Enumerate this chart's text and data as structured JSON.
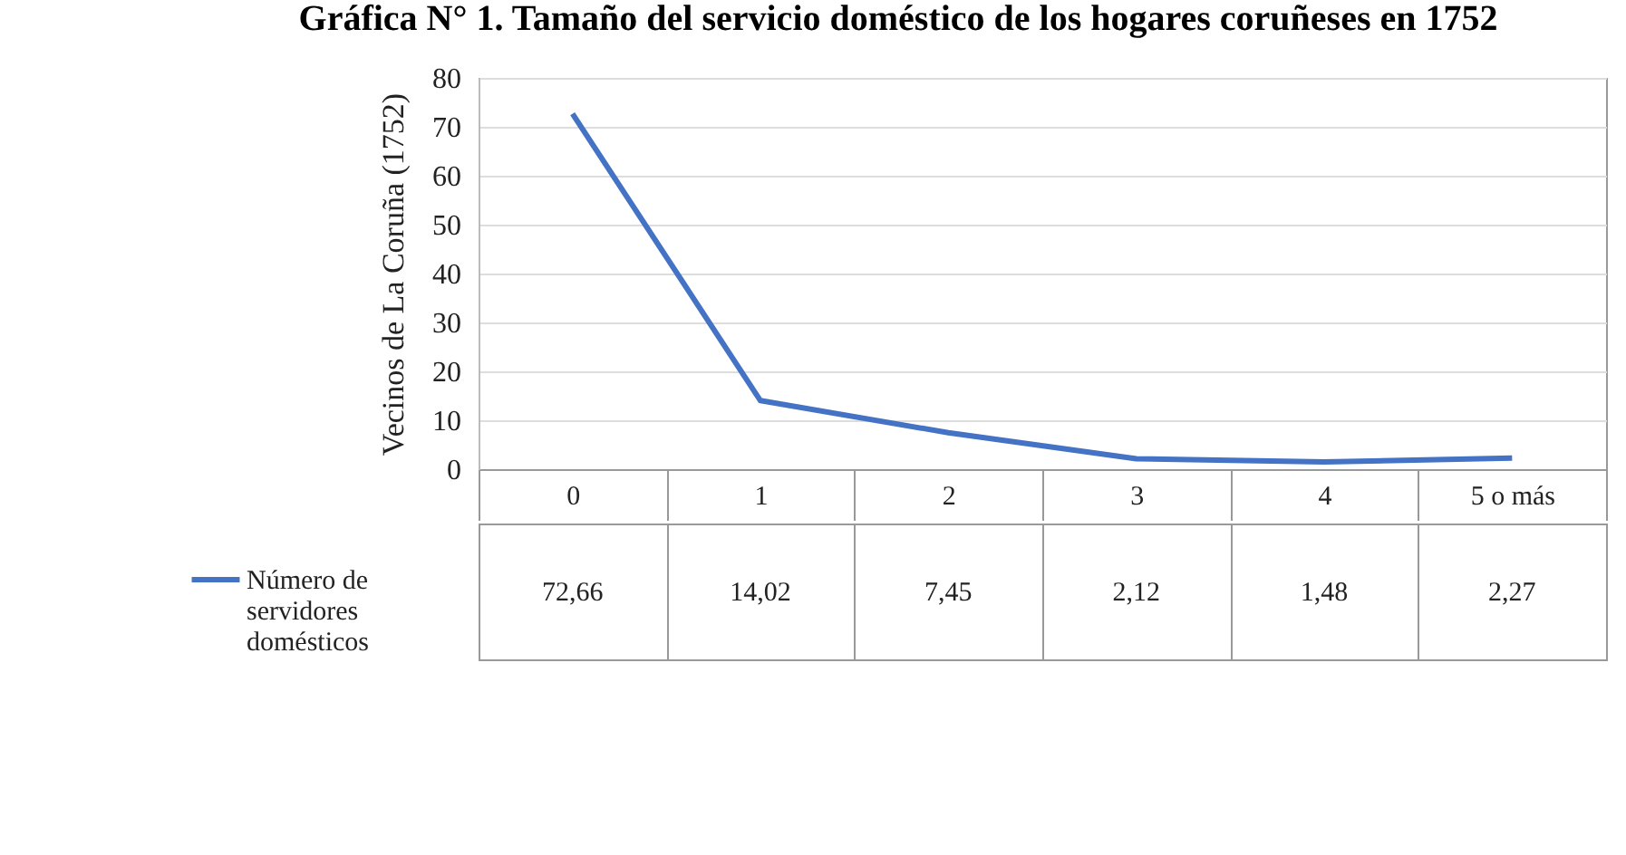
{
  "chart_data": {
    "type": "line",
    "title": "Gráfica N° 1. Tamaño del servicio doméstico de los hogares coruñeses en 1752",
    "ylabel": "Vecinos de La Coruña (1752)",
    "categories": [
      "0",
      "1",
      "2",
      "3",
      "4",
      "5 o más"
    ],
    "series": [
      {
        "name": "Número de servidores domésticos",
        "color": "#4472c4",
        "values": [
          72.66,
          14.02,
          7.45,
          2.12,
          1.48,
          2.27
        ]
      }
    ],
    "ylim": [
      0,
      80
    ],
    "yticks": [
      0,
      10,
      20,
      30,
      40,
      50,
      60,
      70,
      80
    ],
    "value_labels": [
      "72,66",
      "14,02",
      "7,45",
      "2,12",
      "1,48",
      "2,27"
    ],
    "grid": "y",
    "legend": "bottom left",
    "marker": "none",
    "line_style": "solid"
  }
}
